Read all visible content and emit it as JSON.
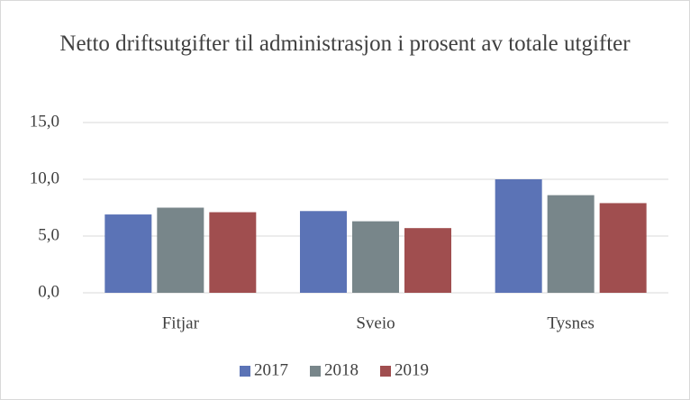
{
  "chart_data": {
    "type": "bar",
    "title": "Netto driftsutgifter til administrasjon i prosent av totale utgifter",
    "categories": [
      "Fitjar",
      "Sveio",
      "Tysnes"
    ],
    "series": [
      {
        "name": "2017",
        "color": "#5b73b6",
        "values": [
          6.9,
          7.2,
          10.0
        ]
      },
      {
        "name": "2018",
        "color": "#78868a",
        "values": [
          7.5,
          6.3,
          8.6
        ]
      },
      {
        "name": "2019",
        "color": "#a04e4f",
        "values": [
          7.1,
          5.7,
          7.9
        ]
      }
    ],
    "ylim": [
      0,
      15
    ],
    "yticks": [
      {
        "value": 0,
        "label": "0,0"
      },
      {
        "value": 5,
        "label": "5,0"
      },
      {
        "value": 10,
        "label": "10,0"
      },
      {
        "value": 15,
        "label": "15,0"
      }
    ],
    "grid": true,
    "legend": "bottom"
  }
}
